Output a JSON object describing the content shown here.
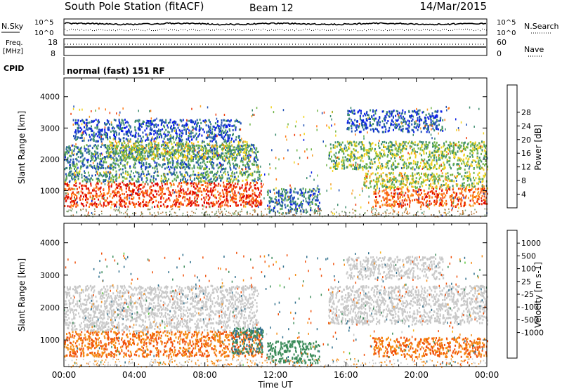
{
  "header": {
    "station": "South Pole Station (fitACF)",
    "beam": "Beam 12",
    "date": "14/Mar/2015"
  },
  "side_labels": {
    "nsky": "N.Sky",
    "nsearch": "N.Search",
    "freq_line1": "Freq.",
    "freq_line2": "[MHz]",
    "nave": "Nave",
    "cpid": "CPID",
    "cpid_value": "normal (fast) 151 RF"
  },
  "noise_axis": {
    "left_top": "10^5",
    "left_bottom": "10^0",
    "right_top": "10^5",
    "right_bottom": "10^0"
  },
  "freq_axis": {
    "left_top": "18",
    "left_bottom": "8",
    "right_top": "60",
    "right_bottom": "0"
  },
  "chart_data": [
    {
      "type": "heatmap",
      "name": "power",
      "xlabel": "Time UT",
      "ylabel": "Slant Range [km]",
      "xlim": [
        0,
        24
      ],
      "ylim": [
        180,
        4600
      ],
      "x_ticks": [
        "00:00",
        "04:00",
        "08:00",
        "12:00",
        "16:00",
        "20:00",
        "00:00"
      ],
      "y_ticks": [
        1000,
        2000,
        3000,
        4000
      ],
      "colorbar": {
        "label": "Power [dB]",
        "ticks": [
          "4",
          "8",
          "12",
          "16",
          "20",
          "24",
          "28"
        ],
        "colors": [
          "#0a1ee6",
          "#1e50b4",
          "#3c8c6e",
          "#6eb446",
          "#f0d21e",
          "#f5a028",
          "#ff7814",
          "#f03c0a",
          "#dc0000"
        ]
      },
      "bands": [
        {
          "t0": 0.0,
          "t1": 11.2,
          "r0": 500,
          "r1": 1300,
          "level": 26
        },
        {
          "t0": 0.0,
          "t1": 11.2,
          "r0": 1300,
          "r1": 1650,
          "level": 10
        },
        {
          "t0": 0.0,
          "t1": 11.0,
          "r0": 1700,
          "r1": 2500,
          "level": 8
        },
        {
          "t0": 2.5,
          "t1": 10.5,
          "r0": 2000,
          "r1": 2600,
          "level": 13
        },
        {
          "t0": 0.5,
          "t1": 10.0,
          "r0": 2600,
          "r1": 3300,
          "level": 5
        },
        {
          "t0": 11.5,
          "t1": 14.5,
          "r0": 300,
          "r1": 1100,
          "level": 7
        },
        {
          "t0": 15.0,
          "t1": 24.0,
          "r0": 1700,
          "r1": 2600,
          "level": 12
        },
        {
          "t0": 17.5,
          "t1": 24.0,
          "r0": 500,
          "r1": 1100,
          "level": 24
        },
        {
          "t0": 17.0,
          "t1": 24.0,
          "r0": 1100,
          "r1": 1600,
          "level": 14
        },
        {
          "t0": 16.0,
          "t1": 21.5,
          "r0": 2900,
          "r1": 3600,
          "level": 5
        }
      ]
    },
    {
      "type": "heatmap",
      "name": "velocity",
      "xlabel": "Time UT",
      "ylabel": "Slant Range [km]",
      "xlim": [
        0,
        24
      ],
      "ylim": [
        180,
        4600
      ],
      "x_ticks": [
        "00:00",
        "04:00",
        "08:00",
        "12:00",
        "16:00",
        "20:00",
        "00:00"
      ],
      "y_ticks": [
        1000,
        2000,
        3000,
        4000
      ],
      "colorbar": {
        "label": "Velocity [m s-1]",
        "ticks": [
          "1000",
          "500",
          "100",
          "25",
          "-25",
          "-100",
          "-500",
          "-1000"
        ],
        "colors": [
          "#1e3ca0",
          "#2d6e8c",
          "#3c8c5a",
          "#5ac83c",
          "#c8c8c8",
          "#c8c8c8",
          "#f5b41e",
          "#f58c14",
          "#f0500a",
          "#e61414"
        ]
      },
      "bands": [
        {
          "t0": 0.0,
          "t1": 11.2,
          "r0": 500,
          "r1": 1300,
          "level": -300
        },
        {
          "t0": 0.0,
          "t1": 11.0,
          "r0": 1300,
          "r1": 2700,
          "level": 0
        },
        {
          "t0": 9.5,
          "t1": 11.3,
          "r0": 600,
          "r1": 1400,
          "level": 300
        },
        {
          "t0": 11.5,
          "t1": 14.5,
          "r0": 300,
          "r1": 1000,
          "level": 200
        },
        {
          "t0": 15.0,
          "t1": 24.0,
          "r0": 1500,
          "r1": 2700,
          "level": 0
        },
        {
          "t0": 17.5,
          "t1": 24.0,
          "r0": 500,
          "r1": 1100,
          "level": -300
        },
        {
          "t0": 16.0,
          "t1": 21.5,
          "r0": 2900,
          "r1": 3600,
          "level": 0
        }
      ]
    }
  ]
}
